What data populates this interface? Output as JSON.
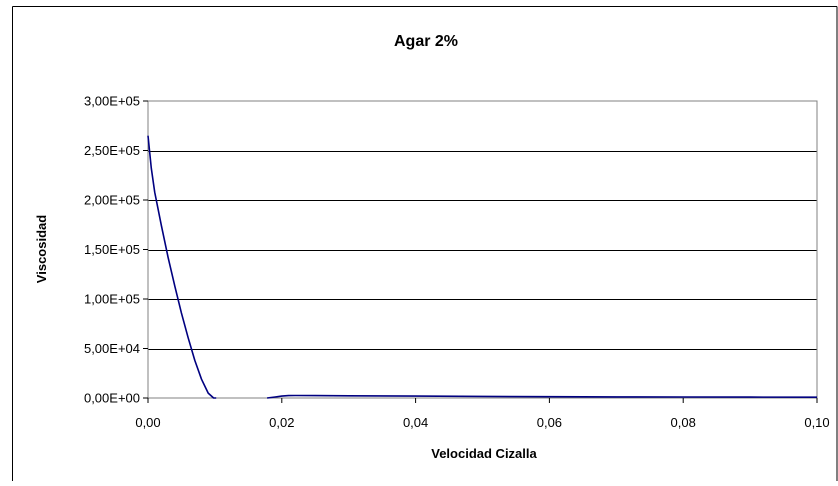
{
  "chart_data": {
    "type": "line",
    "title": "Agar 2%",
    "xlabel": "Velocidad Cizalla",
    "ylabel": "Viscosidad",
    "xlim": [
      0,
      0.1
    ],
    "ylim": [
      0,
      300000
    ],
    "x_ticks": [
      "0,00",
      "0,02",
      "0,04",
      "0,06",
      "0,08",
      "0,10"
    ],
    "x_tick_values": [
      0,
      0.02,
      0.04,
      0.06,
      0.08,
      0.1
    ],
    "y_ticks": [
      "0,00E+00",
      "5,00E+04",
      "1,00E+05",
      "1,50E+05",
      "2,00E+05",
      "2,50E+05",
      "3,00E+05"
    ],
    "y_tick_values": [
      0,
      50000,
      100000,
      150000,
      200000,
      250000,
      300000
    ],
    "grid": "horizontal",
    "legend": "none",
    "series": [
      {
        "color": "#000080",
        "x": [
          0.0,
          0.0005,
          0.001,
          0.002,
          0.003,
          0.004,
          0.005,
          0.006,
          0.007,
          0.008,
          0.009,
          0.0098,
          0.0102
        ],
        "y": [
          265000,
          232000,
          208000,
          174000,
          142000,
          113000,
          86000,
          61000,
          38000,
          19000,
          5000,
          0,
          0
        ]
      },
      {
        "color": "#000080",
        "x": [
          0.0178,
          0.019,
          0.02,
          0.021,
          0.022,
          0.025,
          0.03,
          0.04,
          0.05,
          0.06,
          0.07,
          0.08,
          0.09,
          0.1
        ],
        "y": [
          0,
          1000,
          1900,
          2400,
          2500,
          2400,
          2200,
          1900,
          1600,
          1350,
          1150,
          1000,
          900,
          800
        ]
      }
    ]
  }
}
